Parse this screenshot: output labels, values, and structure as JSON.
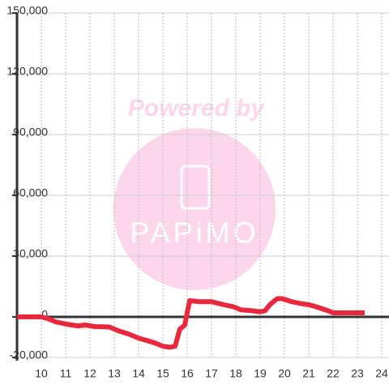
{
  "chart_data": {
    "type": "line",
    "annotations": [
      "Powered by",
      "PAPiMO"
    ],
    "x": [
      9.0,
      10.0,
      10.3,
      10.6,
      11.0,
      11.5,
      11.8,
      12.2,
      12.8,
      13.2,
      13.6,
      14.0,
      14.3,
      14.7,
      15.0,
      15.3,
      15.5,
      15.7,
      15.9,
      16.1,
      16.5,
      17.0,
      17.5,
      17.9,
      18.2,
      18.7,
      19.0,
      19.2,
      19.4,
      19.7,
      19.9,
      20.3,
      20.7,
      21.0,
      21.3,
      21.8,
      22.0,
      23.3
    ],
    "series": [
      {
        "color": "#e8283c",
        "values": [
          0,
          0,
          -1000,
          -2500,
          -3500,
          -4500,
          -4000,
          -4800,
          -5000,
          -7000,
          -8500,
          -10500,
          -11500,
          -13000,
          -14500,
          -15000,
          -14500,
          -6000,
          -4000,
          8000,
          7500,
          7500,
          6000,
          5000,
          3500,
          3000,
          2500,
          3000,
          6000,
          9000,
          9000,
          7500,
          6500,
          6000,
          5000,
          3000,
          2000,
          2000
        ]
      }
    ],
    "xlim": [
      9,
      24.3
    ],
    "xticks": [
      10,
      11,
      12,
      13,
      14,
      15,
      16,
      17,
      18,
      19,
      20,
      21,
      22,
      23,
      24
    ],
    "ylim": [
      -20000,
      150000
    ],
    "yticks": [
      {
        "value": -20000,
        "label": "-20,000"
      },
      0,
      {
        "value": 30000,
        "label": "30,000"
      },
      {
        "value": 60000,
        "label": "60,000"
      },
      {
        "value": 90000,
        "label": "90,000"
      },
      {
        "value": 120000,
        "label": "120,000"
      },
      {
        "value": 150000,
        "label": "150,000"
      }
    ],
    "grid": true
  }
}
